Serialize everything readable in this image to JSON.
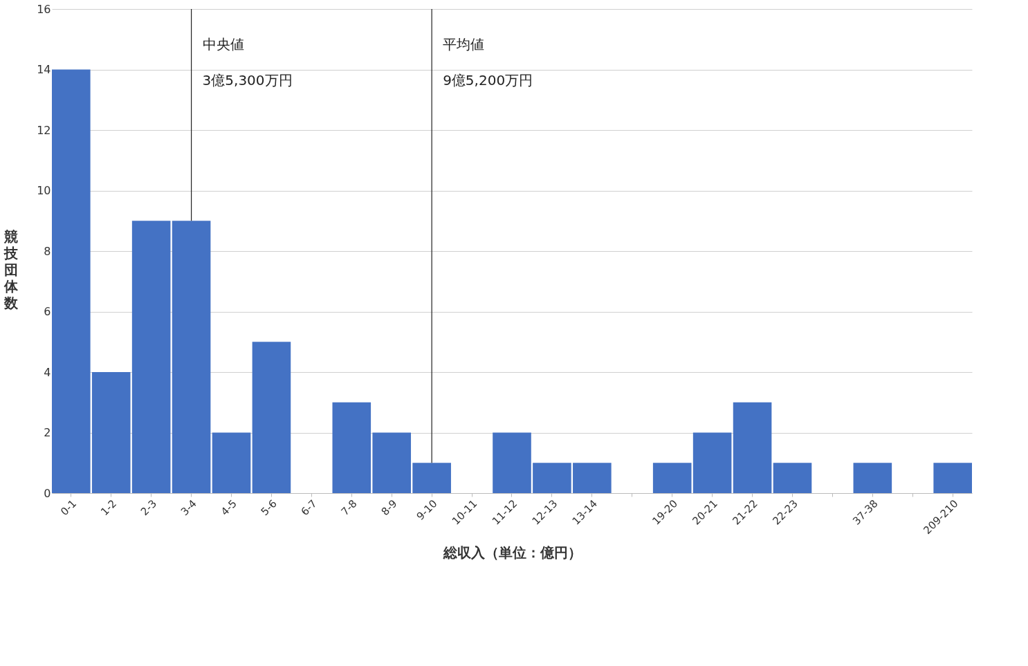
{
  "chart_data": {
    "type": "bar",
    "xlabel": "総収入（単位：億円）",
    "ylabel": "競技団体数",
    "categories": [
      "0-1",
      "1-2",
      "2-3",
      "3-4",
      "4-5",
      "5-6",
      "6-7",
      "7-8",
      "8-9",
      "9-10",
      "10-11",
      "11-12",
      "12-13",
      "13-14",
      null,
      "19-20",
      "20-21",
      "21-22",
      "22-23",
      null,
      "37-38",
      null,
      "209-210"
    ],
    "values": [
      14,
      4,
      9,
      9,
      2,
      5,
      0,
      3,
      2,
      1,
      0,
      2,
      1,
      1,
      null,
      1,
      2,
      3,
      1,
      null,
      1,
      null,
      1
    ],
    "color": "#4472c4",
    "ylim": [
      0,
      16
    ],
    "yticks": [
      0,
      2,
      4,
      6,
      8,
      10,
      12,
      14,
      16
    ],
    "grid": "y",
    "annotations": [
      "中央値",
      "3億5,300万円",
      "平均値",
      "9億5,200万円"
    ],
    "ref_lines": [
      {
        "axis": "x",
        "value": "3-4",
        "color": "#222222"
      },
      {
        "axis": "x",
        "value": "9-10",
        "color": "#222222"
      }
    ]
  }
}
